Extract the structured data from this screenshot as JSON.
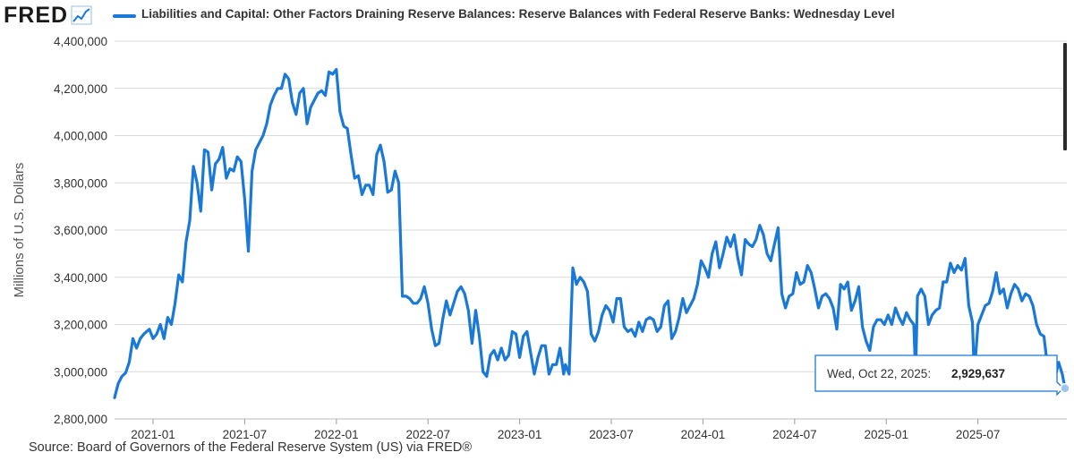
{
  "header": {
    "logo_text": "FRED",
    "title": "Liabilities and Capital: Other Factors Draining Reserve Balances: Reserve Balances with Federal Reserve Banks: Wednesday Level"
  },
  "colors": {
    "series": "#1a78d7",
    "grid": "#d9d9d9",
    "tooltip_border": "#1a78d7"
  },
  "chart_data": {
    "type": "line",
    "title": "Liabilities and Capital: Other Factors Draining Reserve Balances: Reserve Balances with Federal Reserve Banks: Wednesday Level",
    "ylabel": "Millions of U.S. Dollars",
    "xlabel": "",
    "ylim": [
      2800000,
      4400000
    ],
    "xlim": [
      "2020-10",
      "2025-11"
    ],
    "yticks": [
      2800000,
      3000000,
      3200000,
      3400000,
      3600000,
      3800000,
      4000000,
      4200000,
      4400000
    ],
    "ytick_labels": [
      "2,800,000",
      "3,000,000",
      "3,200,000",
      "3,400,000",
      "3,600,000",
      "3,800,000",
      "4,000,000",
      "4,200,000",
      "4,400,000"
    ],
    "xticks": [
      {
        "t": 2021.0,
        "label": "2021-01"
      },
      {
        "t": 2021.5,
        "label": "2021-07"
      },
      {
        "t": 2022.0,
        "label": "2022-01"
      },
      {
        "t": 2022.5,
        "label": "2022-07"
      },
      {
        "t": 2023.0,
        "label": "2023-01"
      },
      {
        "t": 2023.5,
        "label": "2023-07"
      },
      {
        "t": 2024.0,
        "label": "2024-01"
      },
      {
        "t": 2024.5,
        "label": "2024-07"
      },
      {
        "t": 2025.0,
        "label": "2025-01"
      },
      {
        "t": 2025.5,
        "label": "2025-07"
      }
    ],
    "series": [
      {
        "name": "Reserve Balances with Federal Reserve Banks: Wednesday Level",
        "points": [
          [
            2020.79,
            2890000
          ],
          [
            2020.81,
            2950000
          ],
          [
            2020.83,
            2980000
          ],
          [
            2020.85,
            2995000
          ],
          [
            2020.87,
            3040000
          ],
          [
            2020.89,
            3140000
          ],
          [
            2020.91,
            3100000
          ],
          [
            2020.93,
            3140000
          ],
          [
            2020.95,
            3160000
          ],
          [
            2020.98,
            3180000
          ],
          [
            2021.0,
            3140000
          ],
          [
            2021.02,
            3160000
          ],
          [
            2021.04,
            3200000
          ],
          [
            2021.06,
            3140000
          ],
          [
            2021.08,
            3230000
          ],
          [
            2021.1,
            3200000
          ],
          [
            2021.12,
            3290000
          ],
          [
            2021.14,
            3410000
          ],
          [
            2021.16,
            3380000
          ],
          [
            2021.18,
            3550000
          ],
          [
            2021.2,
            3640000
          ],
          [
            2021.22,
            3870000
          ],
          [
            2021.24,
            3800000
          ],
          [
            2021.26,
            3680000
          ],
          [
            2021.28,
            3940000
          ],
          [
            2021.3,
            3930000
          ],
          [
            2021.32,
            3770000
          ],
          [
            2021.34,
            3880000
          ],
          [
            2021.36,
            3900000
          ],
          [
            2021.38,
            3950000
          ],
          [
            2021.4,
            3820000
          ],
          [
            2021.42,
            3860000
          ],
          [
            2021.44,
            3850000
          ],
          [
            2021.46,
            3910000
          ],
          [
            2021.48,
            3890000
          ],
          [
            2021.5,
            3730000
          ],
          [
            2021.52,
            3510000
          ],
          [
            2021.54,
            3850000
          ],
          [
            2021.56,
            3940000
          ],
          [
            2021.58,
            3970000
          ],
          [
            2021.6,
            4000000
          ],
          [
            2021.62,
            4050000
          ],
          [
            2021.64,
            4130000
          ],
          [
            2021.66,
            4170000
          ],
          [
            2021.68,
            4200000
          ],
          [
            2021.7,
            4200000
          ],
          [
            2021.72,
            4260000
          ],
          [
            2021.74,
            4240000
          ],
          [
            2021.76,
            4140000
          ],
          [
            2021.78,
            4090000
          ],
          [
            2021.8,
            4180000
          ],
          [
            2021.82,
            4200000
          ],
          [
            2021.84,
            4050000
          ],
          [
            2021.86,
            4120000
          ],
          [
            2021.88,
            4150000
          ],
          [
            2021.9,
            4180000
          ],
          [
            2021.92,
            4190000
          ],
          [
            2021.94,
            4170000
          ],
          [
            2021.96,
            4270000
          ],
          [
            2021.98,
            4260000
          ],
          [
            2022.0,
            4280000
          ],
          [
            2022.02,
            4100000
          ],
          [
            2022.04,
            4040000
          ],
          [
            2022.06,
            4030000
          ],
          [
            2022.08,
            3920000
          ],
          [
            2022.1,
            3820000
          ],
          [
            2022.12,
            3830000
          ],
          [
            2022.14,
            3750000
          ],
          [
            2022.16,
            3790000
          ],
          [
            2022.18,
            3790000
          ],
          [
            2022.2,
            3750000
          ],
          [
            2022.22,
            3920000
          ],
          [
            2022.24,
            3960000
          ],
          [
            2022.26,
            3890000
          ],
          [
            2022.28,
            3760000
          ],
          [
            2022.3,
            3770000
          ],
          [
            2022.32,
            3850000
          ],
          [
            2022.34,
            3800000
          ],
          [
            2022.36,
            3320000
          ],
          [
            2022.38,
            3320000
          ],
          [
            2022.4,
            3310000
          ],
          [
            2022.42,
            3290000
          ],
          [
            2022.44,
            3290000
          ],
          [
            2022.46,
            3310000
          ],
          [
            2022.48,
            3360000
          ],
          [
            2022.5,
            3290000
          ],
          [
            2022.52,
            3180000
          ],
          [
            2022.54,
            3110000
          ],
          [
            2022.56,
            3120000
          ],
          [
            2022.58,
            3220000
          ],
          [
            2022.6,
            3300000
          ],
          [
            2022.62,
            3240000
          ],
          [
            2022.64,
            3290000
          ],
          [
            2022.66,
            3340000
          ],
          [
            2022.68,
            3360000
          ],
          [
            2022.7,
            3330000
          ],
          [
            2022.72,
            3260000
          ],
          [
            2022.74,
            3120000
          ],
          [
            2022.76,
            3260000
          ],
          [
            2022.78,
            3150000
          ],
          [
            2022.8,
            3000000
          ],
          [
            2022.82,
            2980000
          ],
          [
            2022.84,
            3070000
          ],
          [
            2022.86,
            3090000
          ],
          [
            2022.88,
            3050000
          ],
          [
            2022.9,
            3100000
          ],
          [
            2022.92,
            3050000
          ],
          [
            2022.94,
            3070000
          ],
          [
            2022.96,
            3170000
          ],
          [
            2022.98,
            3160000
          ],
          [
            2023.0,
            3060000
          ],
          [
            2023.02,
            3150000
          ],
          [
            2023.04,
            3170000
          ],
          [
            2023.06,
            3080000
          ],
          [
            2023.08,
            2990000
          ],
          [
            2023.1,
            3060000
          ],
          [
            2023.12,
            3110000
          ],
          [
            2023.14,
            3110000
          ],
          [
            2023.16,
            2990000
          ],
          [
            2023.18,
            3030000
          ],
          [
            2023.2,
            3030000
          ],
          [
            2023.22,
            3100000
          ],
          [
            2023.24,
            2990000
          ],
          [
            2023.25,
            3030000
          ],
          [
            2023.27,
            2990000
          ],
          [
            2023.29,
            3440000
          ],
          [
            2023.31,
            3370000
          ],
          [
            2023.33,
            3400000
          ],
          [
            2023.35,
            3380000
          ],
          [
            2023.37,
            3340000
          ],
          [
            2023.39,
            3160000
          ],
          [
            2023.41,
            3130000
          ],
          [
            2023.43,
            3170000
          ],
          [
            2023.45,
            3240000
          ],
          [
            2023.47,
            3280000
          ],
          [
            2023.49,
            3260000
          ],
          [
            2023.51,
            3210000
          ],
          [
            2023.53,
            3310000
          ],
          [
            2023.55,
            3310000
          ],
          [
            2023.57,
            3190000
          ],
          [
            2023.59,
            3170000
          ],
          [
            2023.61,
            3180000
          ],
          [
            2023.63,
            3150000
          ],
          [
            2023.65,
            3210000
          ],
          [
            2023.67,
            3170000
          ],
          [
            2023.69,
            3220000
          ],
          [
            2023.71,
            3230000
          ],
          [
            2023.73,
            3220000
          ],
          [
            2023.75,
            3170000
          ],
          [
            2023.77,
            3190000
          ],
          [
            2023.79,
            3280000
          ],
          [
            2023.81,
            3300000
          ],
          [
            2023.83,
            3140000
          ],
          [
            2023.85,
            3170000
          ],
          [
            2023.87,
            3230000
          ],
          [
            2023.89,
            3310000
          ],
          [
            2023.91,
            3250000
          ],
          [
            2023.93,
            3280000
          ],
          [
            2023.95,
            3310000
          ],
          [
            2023.97,
            3370000
          ],
          [
            2023.99,
            3470000
          ],
          [
            2024.01,
            3440000
          ],
          [
            2024.03,
            3400000
          ],
          [
            2024.05,
            3500000
          ],
          [
            2024.07,
            3550000
          ],
          [
            2024.09,
            3440000
          ],
          [
            2024.11,
            3500000
          ],
          [
            2024.13,
            3570000
          ],
          [
            2024.15,
            3530000
          ],
          [
            2024.17,
            3580000
          ],
          [
            2024.19,
            3480000
          ],
          [
            2024.21,
            3410000
          ],
          [
            2024.23,
            3560000
          ],
          [
            2024.25,
            3540000
          ],
          [
            2024.27,
            3530000
          ],
          [
            2024.29,
            3560000
          ],
          [
            2024.31,
            3620000
          ],
          [
            2024.33,
            3580000
          ],
          [
            2024.35,
            3500000
          ],
          [
            2024.37,
            3470000
          ],
          [
            2024.39,
            3540000
          ],
          [
            2024.41,
            3610000
          ],
          [
            2024.43,
            3330000
          ],
          [
            2024.45,
            3270000
          ],
          [
            2024.47,
            3320000
          ],
          [
            2024.49,
            3330000
          ],
          [
            2024.51,
            3420000
          ],
          [
            2024.53,
            3370000
          ],
          [
            2024.55,
            3380000
          ],
          [
            2024.57,
            3450000
          ],
          [
            2024.59,
            3420000
          ],
          [
            2024.61,
            3350000
          ],
          [
            2024.63,
            3270000
          ],
          [
            2024.65,
            3320000
          ],
          [
            2024.67,
            3330000
          ],
          [
            2024.69,
            3310000
          ],
          [
            2024.71,
            3270000
          ],
          [
            2024.73,
            3180000
          ],
          [
            2024.75,
            3370000
          ],
          [
            2024.77,
            3350000
          ],
          [
            2024.79,
            3380000
          ],
          [
            2024.81,
            3260000
          ],
          [
            2024.83,
            3300000
          ],
          [
            2024.85,
            3360000
          ],
          [
            2024.87,
            3190000
          ],
          [
            2024.89,
            3130000
          ],
          [
            2024.91,
            3090000
          ],
          [
            2024.93,
            3190000
          ],
          [
            2024.95,
            3220000
          ],
          [
            2024.97,
            3220000
          ],
          [
            2024.99,
            3200000
          ],
          [
            2025.01,
            3240000
          ],
          [
            2025.03,
            3200000
          ],
          [
            2025.05,
            3270000
          ],
          [
            2025.07,
            3230000
          ],
          [
            2025.09,
            3200000
          ],
          [
            2025.11,
            3250000
          ],
          [
            2025.13,
            3220000
          ],
          [
            2025.15,
            3200000
          ],
          [
            2025.16,
            2990000
          ],
          [
            2025.17,
            3320000
          ],
          [
            2025.19,
            3350000
          ],
          [
            2025.21,
            3320000
          ],
          [
            2025.23,
            3200000
          ],
          [
            2025.25,
            3240000
          ],
          [
            2025.27,
            3260000
          ],
          [
            2025.29,
            3270000
          ],
          [
            2025.31,
            3380000
          ],
          [
            2025.33,
            3380000
          ],
          [
            2025.35,
            3460000
          ],
          [
            2025.37,
            3420000
          ],
          [
            2025.39,
            3450000
          ],
          [
            2025.41,
            3430000
          ],
          [
            2025.43,
            3480000
          ],
          [
            2025.45,
            3280000
          ],
          [
            2025.47,
            3210000
          ],
          [
            2025.48,
            2990000
          ],
          [
            2025.5,
            3200000
          ],
          [
            2025.52,
            3240000
          ],
          [
            2025.54,
            3280000
          ],
          [
            2025.56,
            3290000
          ],
          [
            2025.58,
            3340000
          ],
          [
            2025.6,
            3420000
          ],
          [
            2025.62,
            3330000
          ],
          [
            2025.64,
            3350000
          ],
          [
            2025.66,
            3270000
          ],
          [
            2025.68,
            3330000
          ],
          [
            2025.7,
            3370000
          ],
          [
            2025.72,
            3350000
          ],
          [
            2025.74,
            3300000
          ],
          [
            2025.76,
            3330000
          ],
          [
            2025.78,
            3320000
          ],
          [
            2025.8,
            3280000
          ],
          [
            2025.82,
            3200000
          ],
          [
            2025.84,
            3160000
          ],
          [
            2025.86,
            3150000
          ],
          [
            2025.88,
            3020000
          ],
          [
            2025.9,
            3000000
          ],
          [
            2025.92,
            2970000
          ],
          [
            2025.94,
            3040000
          ],
          [
            2025.96,
            2990000
          ],
          [
            2025.975,
            2929637
          ]
        ]
      }
    ],
    "tooltip": {
      "date": "Wed, Oct 22, 2025:",
      "value": "2,929,637",
      "t": 2025.975,
      "y": 2929637
    }
  },
  "footer": {
    "source": "Source: Board of Governors of the Federal Reserve System (US) via FRED®"
  }
}
